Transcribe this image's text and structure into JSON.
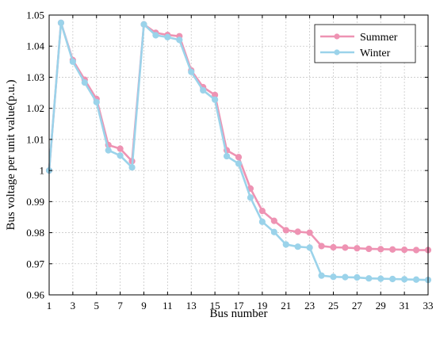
{
  "chart_data": {
    "type": "line",
    "title": "",
    "xlabel": "Bus number",
    "ylabel": "Bus voltage per unit value(p.u.)",
    "xlim": [
      1,
      33
    ],
    "ylim": [
      0.96,
      1.05
    ],
    "xticks": [
      "1",
      "3",
      "5",
      "7",
      "9",
      "11",
      "13",
      "15",
      "17",
      "19",
      "21",
      "23",
      "25",
      "27",
      "29",
      "31",
      "33"
    ],
    "yticks": [
      "0.96",
      "0.97",
      "0.98",
      "0.99",
      "1",
      "1.01",
      "1.02",
      "1.03",
      "1.04",
      "1.05"
    ],
    "grid": true,
    "legend_position": "top-right",
    "x": [
      1,
      2,
      3,
      4,
      5,
      6,
      7,
      8,
      9,
      10,
      11,
      12,
      13,
      14,
      15,
      16,
      17,
      18,
      19,
      20,
      21,
      22,
      23,
      24,
      25,
      26,
      27,
      28,
      29,
      30,
      31,
      32,
      33
    ],
    "series": [
      {
        "name": "Summer",
        "color": "#ee93b3",
        "values": [
          1.0,
          1.0475,
          1.0355,
          1.0292,
          1.023,
          1.0082,
          1.007,
          1.003,
          1.047,
          1.0443,
          1.0436,
          1.0432,
          1.0322,
          1.0268,
          1.0243,
          1.0065,
          1.0043,
          0.9942,
          0.987,
          0.9838,
          0.9808,
          0.9803,
          0.98,
          0.9757,
          0.9753,
          0.9752,
          0.975,
          0.9748,
          0.9747,
          0.9746,
          0.9745,
          0.9744,
          0.9744
        ]
      },
      {
        "name": "Winter",
        "color": "#9bd3ea",
        "values": [
          1.0,
          1.0475,
          1.035,
          1.0283,
          1.022,
          1.0065,
          1.0048,
          1.001,
          1.047,
          1.0435,
          1.0429,
          1.042,
          1.0317,
          1.0258,
          1.0228,
          1.0046,
          1.0022,
          0.9913,
          0.9835,
          0.9802,
          0.9762,
          0.9755,
          0.9752,
          0.9662,
          0.9658,
          0.9657,
          0.9656,
          0.9653,
          0.9652,
          0.9651,
          0.965,
          0.9649,
          0.9648
        ]
      }
    ]
  }
}
